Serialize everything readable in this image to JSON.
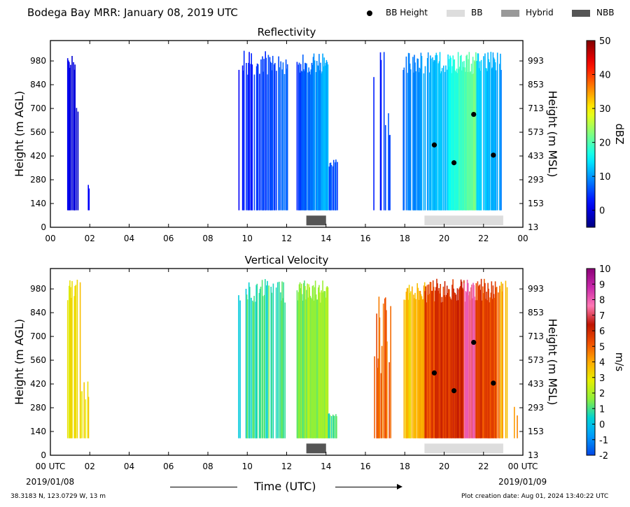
{
  "header": {
    "title": "Bodega Bay MRR:  January 08, 2019 UTC",
    "legend": [
      {
        "label": "BB Height",
        "color": "#000000",
        "kind": "dot"
      },
      {
        "label": "BB",
        "color": "#dddddd",
        "kind": "box"
      },
      {
        "label": "Hybrid",
        "color": "#999999",
        "kind": "box"
      },
      {
        "label": "NBB",
        "color": "#555555",
        "kind": "box"
      }
    ]
  },
  "footer": {
    "location": "38.3183 N, 123.0729 W, 13 m",
    "created": "Plot creation date: Aug 01, 2024 13:40:22 UTC",
    "xlabel": "Time (UTC)",
    "start_date": "2019/01/08",
    "end_date": "2019/01/09"
  },
  "chart_data": [
    {
      "type": "heatmap",
      "title": "Reflectivity",
      "ylabel": "Height (m AGL)",
      "y2label": "Height (m MSL)",
      "xlim": [
        0,
        24
      ],
      "ylim": [
        0,
        1100
      ],
      "xticks": [
        "00",
        "02",
        "04",
        "06",
        "08",
        "10",
        "12",
        "14",
        "16",
        "18",
        "20",
        "22",
        "00"
      ],
      "yticks": [
        0,
        140,
        280,
        420,
        560,
        700,
        840,
        980
      ],
      "y2ticks": [
        13,
        153,
        293,
        433,
        573,
        713,
        853,
        993
      ],
      "colorbar": {
        "label": "dBZ",
        "min": -5,
        "max": 50,
        "ticks": [
          0,
          10,
          20,
          30,
          40,
          50
        ]
      },
      "bb_height": [
        {
          "time": 19.5,
          "height": 485
        },
        {
          "time": 20.5,
          "height": 380
        },
        {
          "time": 21.5,
          "height": 665
        },
        {
          "time": 22.5,
          "height": 425
        }
      ],
      "bb_type": [
        {
          "type": "NBB",
          "start": 13.0,
          "end": 14.0
        },
        {
          "type": "BB",
          "start": 19.0,
          "end": 23.0
        }
      ]
    },
    {
      "type": "heatmap",
      "title": "Vertical Velocity",
      "ylabel": "Height (m AGL)",
      "y2label": "Height (m MSL)",
      "xlim": [
        0,
        24
      ],
      "ylim": [
        0,
        1100
      ],
      "xticks": [
        "00 UTC",
        "02",
        "04",
        "06",
        "08",
        "10",
        "12",
        "14",
        "16",
        "18",
        "20",
        "22",
        "00 UTC"
      ],
      "yticks": [
        0,
        140,
        280,
        420,
        560,
        700,
        840,
        980
      ],
      "y2ticks": [
        13,
        153,
        293,
        433,
        573,
        713,
        853,
        993
      ],
      "colorbar": {
        "label": "m/s",
        "min": -2,
        "max": 10,
        "ticks": [
          -2,
          -1,
          0,
          1,
          2,
          3,
          4,
          5,
          6,
          7,
          8,
          9,
          10
        ]
      },
      "bb_height": [
        {
          "time": 19.5,
          "height": 485
        },
        {
          "time": 20.5,
          "height": 380
        },
        {
          "time": 21.5,
          "height": 665
        },
        {
          "time": 22.5,
          "height": 425
        }
      ],
      "bb_type": [
        {
          "type": "NBB",
          "start": 13.0,
          "end": 14.0
        },
        {
          "type": "BB",
          "start": 19.0,
          "end": 23.0
        }
      ]
    }
  ]
}
